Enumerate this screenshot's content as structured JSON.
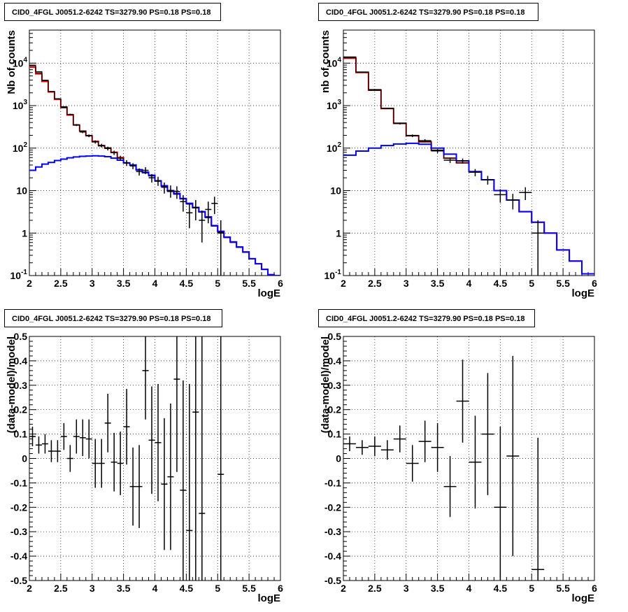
{
  "chart_data": [
    {
      "type": "line",
      "panel": "top-left",
      "title": "CID0_4FGL J0051.2-6242 TS=3279.90 PS=0.18 PS=0.18",
      "xlabel": "logE",
      "ylabel": "Nb of counts",
      "xlim": [
        2,
        6
      ],
      "ylim": [
        0.1,
        60000
      ],
      "yscale": "log",
      "grid": true,
      "x_ticks": [
        "2",
        "2.5",
        "3",
        "3.5",
        "4",
        "4.5",
        "5",
        "5.5",
        "6"
      ],
      "y_ticks": [
        "10^{-1}",
        "1",
        "10",
        "10^{2}",
        "10^{3}",
        "10^{4}"
      ],
      "bin_edges": [
        2.0,
        2.1,
        2.2,
        2.3,
        2.4,
        2.5,
        2.6,
        2.7,
        2.8,
        2.9,
        3.0,
        3.1,
        3.2,
        3.3,
        3.4,
        3.5,
        3.6,
        3.7,
        3.8,
        3.9,
        4.0,
        4.1,
        4.2,
        4.3,
        4.4,
        4.5,
        4.6,
        4.7,
        4.8,
        4.9,
        5.0,
        5.1,
        5.2,
        5.3,
        5.4,
        5.5,
        5.6,
        5.7,
        5.8,
        5.9,
        6.0
      ],
      "series": [
        {
          "color": "#ff0000",
          "values": [
            8000,
            5600,
            3700,
            2100,
            1400,
            900,
            600,
            350,
            250,
            195,
            145,
            115,
            100,
            80,
            60,
            45,
            40,
            31,
            27,
            23,
            17,
            13,
            10,
            8.5,
            6.5,
            5,
            4,
            3.2,
            2.4,
            1.5,
            1.1,
            0.8,
            0.62,
            0.47,
            0.36,
            0.25,
            0.19,
            0.14,
            0.105,
            0.1
          ]
        },
        {
          "color": "#000000",
          "values": [
            9000,
            6300,
            3950,
            2150,
            1450,
            940,
            620,
            355,
            255,
            200,
            140,
            112,
            102,
            78,
            58,
            44,
            40,
            30,
            26,
            22,
            16.5,
            12.5,
            9.5,
            8.2,
            6.3,
            4.8,
            3.9,
            3.1,
            2.3,
            1.45,
            1.05,
            0.78,
            0.6,
            0.46,
            0.35,
            0.25,
            0.19,
            0.14,
            0.105,
            0.1
          ]
        },
        {
          "color": "#0000ff",
          "values": [
            30,
            36,
            42,
            46,
            51,
            55,
            59,
            62,
            64,
            65,
            66,
            65,
            63,
            58,
            52,
            45,
            40,
            31,
            27,
            23,
            17,
            13,
            10,
            8.5,
            6.5,
            5,
            4,
            3.2,
            2.4,
            1.5,
            1.1,
            0.8,
            0.62,
            0.47,
            0.36,
            0.25,
            0.19,
            0.14,
            0.105,
            0.1
          ]
        }
      ],
      "data_points": {
        "x": [
          2.05,
          2.15,
          2.25,
          2.35,
          2.45,
          2.55,
          2.65,
          2.75,
          2.85,
          2.95,
          3.05,
          3.15,
          3.25,
          3.35,
          3.45,
          3.55,
          3.65,
          3.75,
          3.85,
          3.95,
          4.05,
          4.15,
          4.25,
          4.35,
          4.45,
          4.55,
          4.65,
          4.75,
          4.85,
          4.95,
          5.05
        ],
        "y": [
          8700,
          5900,
          3900,
          2150,
          1450,
          900,
          620,
          350,
          240,
          195,
          140,
          115,
          98,
          78,
          58,
          45,
          38,
          28,
          30,
          20,
          17,
          12,
          10,
          9.5,
          5.5,
          3,
          4,
          2,
          3.6,
          5,
          1
        ],
        "yerr": [
          93,
          77,
          62,
          46,
          38,
          30,
          25,
          19,
          15,
          14,
          12,
          11,
          10,
          9,
          8,
          7,
          6,
          5.3,
          5.5,
          4.5,
          4.1,
          3.5,
          3.2,
          3.1,
          2.3,
          1.7,
          2,
          1.4,
          1.9,
          2.2,
          1
        ]
      }
    },
    {
      "type": "line",
      "panel": "top-right",
      "title": "CID0_4FGL J0051.2-6242 TS=3279.90 PS=0.18 PS=0.18",
      "xlabel": "logE",
      "ylabel": "nb of counts",
      "xlim": [
        2,
        6
      ],
      "ylim": [
        0.1,
        60000
      ],
      "yscale": "log",
      "grid": true,
      "x_ticks": [
        "2",
        "2.5",
        "3",
        "3.5",
        "4",
        "4.5",
        "5",
        "5.5",
        "6"
      ],
      "y_ticks": [
        "10^{-1}",
        "1",
        "10",
        "10^{2}",
        "10^{3}",
        "10^{4}"
      ],
      "bin_edges": [
        2.0,
        2.2,
        2.4,
        2.6,
        2.8,
        3.0,
        3.2,
        3.4,
        3.6,
        3.8,
        4.0,
        4.2,
        4.4,
        4.6,
        4.8,
        5.0,
        5.2,
        5.4,
        5.6,
        5.8,
        6.0
      ],
      "series": [
        {
          "color": "#ff0000",
          "values": [
            13000,
            6000,
            2300,
            850,
            380,
            195,
            140,
            88,
            58,
            45,
            28,
            18,
            10,
            6,
            3.2,
            1.8,
            1,
            0.4,
            0.22,
            0.11
          ]
        },
        {
          "color": "#000000",
          "values": [
            14000,
            6200,
            2400,
            870,
            390,
            200,
            142,
            90,
            58,
            45,
            28,
            18,
            10,
            6,
            3.2,
            1.8,
            1,
            0.4,
            0.22,
            0.11
          ]
        },
        {
          "color": "#0000ff",
          "values": [
            68,
            85,
            100,
            115,
            125,
            130,
            123,
            100,
            72,
            50,
            28,
            18,
            10,
            6,
            3.2,
            1.8,
            1,
            0.4,
            0.22,
            0.11
          ]
        }
      ],
      "data_points": {
        "x": [
          2.1,
          2.3,
          2.5,
          2.7,
          2.9,
          3.1,
          3.3,
          3.5,
          3.7,
          3.9,
          4.1,
          4.3,
          4.5,
          4.7,
          4.9,
          5.1
        ],
        "y": [
          13500,
          6100,
          2300,
          860,
          380,
          195,
          150,
          86,
          52,
          50,
          27,
          18,
          8,
          6,
          9,
          1
        ],
        "yerr": [
          116,
          78,
          48,
          29,
          19,
          14,
          12,
          9.3,
          7.2,
          7,
          5.2,
          4.2,
          2.8,
          2.4,
          3,
          1
        ]
      }
    },
    {
      "type": "scatter",
      "panel": "bottom-left",
      "title": "CID0_4FGL J0051.2-6242 TS=3279.90 PS=0.18 PS=0.18",
      "xlabel": "logE",
      "ylabel": "(data-model)/model",
      "xlim": [
        2,
        6
      ],
      "ylim": [
        -0.5,
        0.5
      ],
      "grid": true,
      "x_ticks": [
        "2",
        "2.5",
        "3",
        "3.5",
        "4",
        "4.5",
        "5",
        "5.5",
        "6"
      ],
      "y_ticks": [
        "-0.5",
        "-0.4",
        "-0.3",
        "-0.2",
        "-0.1",
        "0",
        "0.1",
        "0.2",
        "0.3",
        "0.4",
        "0.5"
      ],
      "points": {
        "x": [
          2.05,
          2.15,
          2.25,
          2.35,
          2.45,
          2.55,
          2.65,
          2.75,
          2.85,
          2.95,
          3.05,
          3.15,
          3.25,
          3.35,
          3.45,
          3.55,
          3.65,
          3.75,
          3.85,
          3.95,
          4.05,
          4.15,
          4.25,
          4.35,
          4.45,
          4.55,
          4.65,
          4.75,
          5.05
        ],
        "y": [
          0.09,
          0.055,
          0.06,
          0.03,
          0.03,
          0.09,
          0.0,
          0.09,
          0.085,
          0.08,
          -0.02,
          -0.02,
          0.145,
          -0.015,
          -0.02,
          0.13,
          -0.115,
          -0.115,
          0.36,
          0.075,
          0.065,
          -0.105,
          -0.075,
          0.325,
          -0.13,
          -0.295,
          0.19,
          -0.225,
          -0.065
        ],
        "yerr": [
          0.04,
          0.035,
          0.04,
          0.045,
          0.045,
          0.055,
          0.055,
          0.07,
          0.075,
          0.08,
          0.1,
          0.1,
          0.12,
          0.12,
          0.13,
          0.155,
          0.16,
          0.17,
          0.2,
          0.22,
          0.24,
          0.27,
          0.3,
          0.38,
          0.45,
          0.6,
          0.7,
          0.8,
          1.0
        ],
        "xerr": 0.05
      }
    },
    {
      "type": "scatter",
      "panel": "bottom-right",
      "title": "CID0_4FGL J0051.2-6242 TS=3279.90 PS=0.18 PS=0.18",
      "xlabel": "logE",
      "ylabel": "(data-model)/model",
      "xlim": [
        2,
        6
      ],
      "ylim": [
        -0.5,
        0.5
      ],
      "grid": true,
      "x_ticks": [
        "2",
        "2.5",
        "3",
        "3.5",
        "4",
        "4.5",
        "5",
        "5.5",
        "6"
      ],
      "y_ticks": [
        "-0.5",
        "-0.4",
        "-0.3",
        "-0.2",
        "-0.1",
        "0",
        "0.1",
        "0.2",
        "0.3",
        "0.4",
        "0.5"
      ],
      "points": {
        "x": [
          2.1,
          2.3,
          2.5,
          2.7,
          2.9,
          3.1,
          3.3,
          3.5,
          3.7,
          3.9,
          4.1,
          4.3,
          4.5,
          4.7,
          5.1
        ],
        "y": [
          0.06,
          0.045,
          0.05,
          0.035,
          0.08,
          -0.02,
          0.07,
          0.045,
          -0.115,
          0.235,
          -0.015,
          0.1,
          -0.2,
          0.01,
          -0.455
        ],
        "yerr": [
          0.03,
          0.03,
          0.04,
          0.04,
          0.055,
          0.075,
          0.085,
          0.1,
          0.125,
          0.17,
          0.19,
          0.25,
          0.33,
          0.41,
          0.54
        ],
        "xerr": 0.1
      }
    }
  ]
}
